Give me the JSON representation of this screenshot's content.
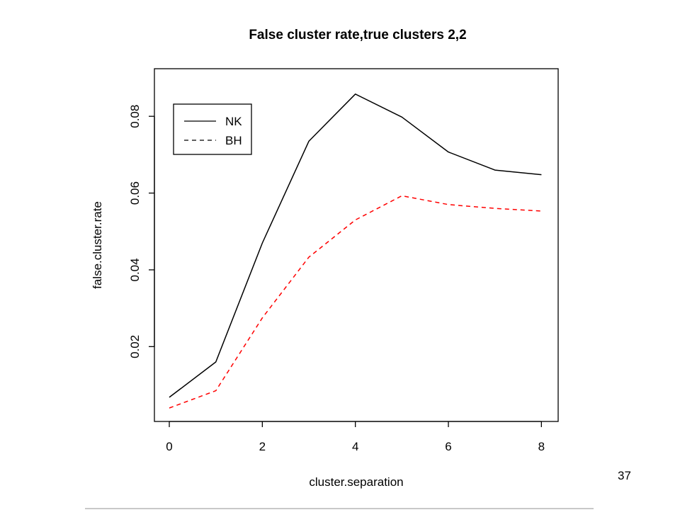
{
  "page": {
    "page_number": "37"
  },
  "chart_data": {
    "type": "line",
    "title": "False cluster rate,true clusters 2,2",
    "xlabel": "cluster.separation",
    "ylabel": "false.cluster.rate",
    "x": [
      0,
      1,
      2,
      3,
      4,
      5,
      6,
      7,
      8
    ],
    "series": [
      {
        "name": "NK",
        "style": "solid",
        "color": "#000000",
        "values": [
          0.0068,
          0.016,
          0.047,
          0.0735,
          0.0858,
          0.0798,
          0.0707,
          0.066,
          0.0648
        ]
      },
      {
        "name": "BH",
        "style": "dashed",
        "color": "#ff0000",
        "values": [
          0.004,
          0.0085,
          0.0275,
          0.0433,
          0.053,
          0.0593,
          0.057,
          0.056,
          0.0553
        ]
      }
    ],
    "xlim": [
      -0.32,
      8.36
    ],
    "ylim": [
      0.0005,
      0.0924
    ],
    "xticks": [
      0,
      2,
      4,
      6,
      8
    ],
    "xtick_labels": [
      "0",
      "2",
      "4",
      "6",
      "8"
    ],
    "yticks": [
      0.02,
      0.04,
      0.06,
      0.08
    ],
    "ytick_labels": [
      "0.02",
      "0.04",
      "0.06",
      "0.08"
    ],
    "grid": false,
    "legend_position": "top-left",
    "legend_line_colors": [
      "#000000",
      "#000000"
    ]
  }
}
